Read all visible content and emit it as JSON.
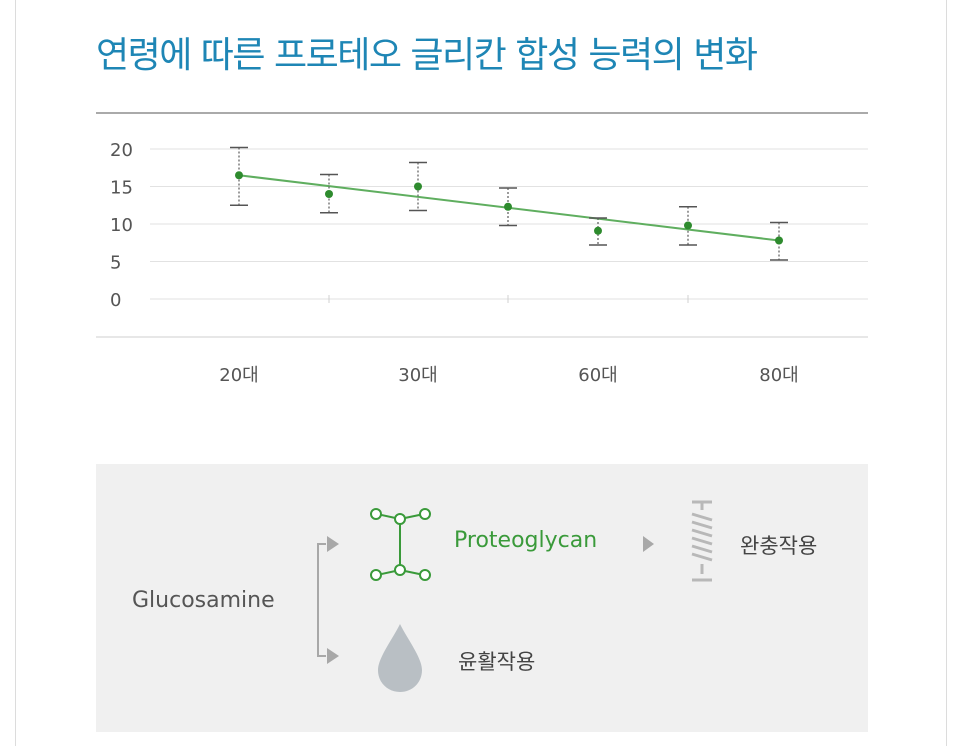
{
  "title": "연령에 따른 프로테오 글리칸 합성 능력의 변화",
  "chart_data": {
    "type": "line",
    "categories": [
      "20대",
      "",
      "30대",
      "",
      "60대",
      "",
      "80대"
    ],
    "series": [
      {
        "points": [
          16.5,
          14,
          15,
          12.3,
          9.1,
          9.8,
          7.8
        ],
        "error_low": [
          12.5,
          11.5,
          11.8,
          9.8,
          7.2,
          7.2,
          5.2
        ],
        "error_high": [
          20.2,
          16.6,
          18.2,
          14.8,
          10.8,
          12.3,
          10.2
        ],
        "color": "#2e8b2e"
      }
    ],
    "trend": {
      "start": 16.5,
      "end": 7.8,
      "color": "#5fae5f"
    },
    "ylim": [
      0,
      20
    ],
    "yticks": [
      "20",
      "15",
      "10",
      "5",
      "0"
    ],
    "xtick_labels": [
      "20대",
      "30대",
      "60대",
      "80대"
    ],
    "grid": true
  },
  "diagram": {
    "source": "Glucosamine",
    "product": "Proteoglycan",
    "effect_cushion": "완충작용",
    "effect_lubrication": "윤활작용",
    "colors": {
      "green": "#3a9a3a",
      "gray": "#a8a8a8",
      "drop": "#b9bfc4",
      "panel": "#f0f0f0"
    },
    "icons": [
      "molecule-icon",
      "spring-icon",
      "droplet-icon",
      "arrow-icon"
    ]
  }
}
